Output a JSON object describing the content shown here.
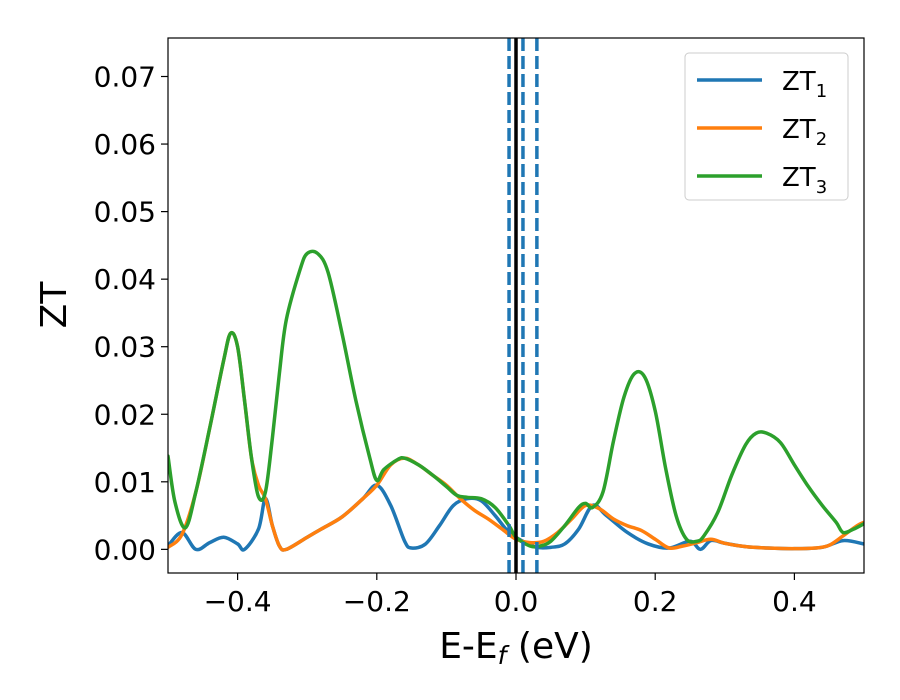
{
  "chart_data": {
    "type": "line",
    "xlabel": {
      "main": "E-E",
      "sub": "f",
      "unit": " (eV)"
    },
    "ylabel": "ZT",
    "xlim": [
      -0.5,
      0.5
    ],
    "ylim": [
      -0.0035,
      0.0757
    ],
    "x_ticks": [
      -0.4,
      -0.2,
      0.0,
      0.2,
      0.4
    ],
    "x_tick_labels": [
      "−0.4",
      "−0.2",
      "0.0",
      "0.2",
      "0.4"
    ],
    "y_ticks": [
      0.0,
      0.01,
      0.02,
      0.03,
      0.04,
      0.05,
      0.06,
      0.07
    ],
    "y_tick_labels": [
      "0.00",
      "0.01",
      "0.02",
      "0.03",
      "0.04",
      "0.05",
      "0.06",
      "0.07"
    ],
    "grid": false,
    "legend_position": "top-right",
    "series": [
      {
        "name": "ZT",
        "sub": "1",
        "color": "#1f77b4",
        "points": [
          [
            -0.5,
            0.0005
          ],
          [
            -0.48,
            0.0025
          ],
          [
            -0.46,
            0.0
          ],
          [
            -0.44,
            0.001
          ],
          [
            -0.42,
            0.0018
          ],
          [
            -0.4,
            0.0008
          ],
          [
            -0.39,
            0.0
          ],
          [
            -0.37,
            0.003
          ],
          [
            -0.36,
            0.0075
          ],
          [
            -0.35,
            0.0035
          ],
          [
            -0.34,
            0.0005
          ],
          [
            -0.33,
            0.0
          ],
          [
            -0.3,
            0.0018
          ],
          [
            -0.28,
            0.003
          ],
          [
            -0.25,
            0.0048
          ],
          [
            -0.22,
            0.0075
          ],
          [
            -0.2,
            0.0095
          ],
          [
            -0.18,
            0.0065
          ],
          [
            -0.16,
            0.0012
          ],
          [
            -0.15,
            0.0002
          ],
          [
            -0.13,
            0.0008
          ],
          [
            -0.11,
            0.0035
          ],
          [
            -0.09,
            0.0065
          ],
          [
            -0.07,
            0.0075
          ],
          [
            -0.05,
            0.0072
          ],
          [
            -0.03,
            0.005
          ],
          [
            -0.01,
            0.0025
          ],
          [
            0.01,
            0.0012
          ],
          [
            0.03,
            0.0003
          ],
          [
            0.05,
            0.0003
          ],
          [
            0.07,
            0.0008
          ],
          [
            0.09,
            0.003
          ],
          [
            0.11,
            0.0065
          ],
          [
            0.13,
            0.005
          ],
          [
            0.16,
            0.0025
          ],
          [
            0.19,
            0.0008
          ],
          [
            0.22,
            0.0002
          ],
          [
            0.25,
            0.0012
          ],
          [
            0.265,
            0.0
          ],
          [
            0.28,
            0.0013
          ],
          [
            0.3,
            0.0009
          ],
          [
            0.33,
            0.0004
          ],
          [
            0.36,
            0.0002
          ],
          [
            0.4,
            0.0001
          ],
          [
            0.44,
            0.0003
          ],
          [
            0.47,
            0.0013
          ],
          [
            0.5,
            0.0008
          ]
        ]
      },
      {
        "name": "ZT",
        "sub": "2",
        "color": "#ff7f0e",
        "points": [
          [
            -0.5,
            0.0003
          ],
          [
            -0.48,
            0.0022
          ],
          [
            -0.46,
            0.0085
          ],
          [
            -0.44,
            0.018
          ],
          [
            -0.42,
            0.028
          ],
          [
            -0.41,
            0.032
          ],
          [
            -0.4,
            0.03
          ],
          [
            -0.39,
            0.022
          ],
          [
            -0.38,
            0.0135
          ],
          [
            -0.37,
            0.0095
          ],
          [
            -0.36,
            0.0075
          ],
          [
            -0.35,
            0.0035
          ],
          [
            -0.34,
            0.0005
          ],
          [
            -0.33,
            0.0
          ],
          [
            -0.3,
            0.0018
          ],
          [
            -0.28,
            0.003
          ],
          [
            -0.25,
            0.0048
          ],
          [
            -0.22,
            0.0075
          ],
          [
            -0.2,
            0.0095
          ],
          [
            -0.18,
            0.0125
          ],
          [
            -0.16,
            0.0135
          ],
          [
            -0.14,
            0.0125
          ],
          [
            -0.12,
            0.011
          ],
          [
            -0.1,
            0.0095
          ],
          [
            -0.08,
            0.0075
          ],
          [
            -0.06,
            0.0058
          ],
          [
            -0.04,
            0.0045
          ],
          [
            -0.02,
            0.003
          ],
          [
            0.0,
            0.0015
          ],
          [
            0.02,
            0.001
          ],
          [
            0.04,
            0.0012
          ],
          [
            0.06,
            0.0025
          ],
          [
            0.08,
            0.0045
          ],
          [
            0.1,
            0.0065
          ],
          [
            0.12,
            0.006
          ],
          [
            0.14,
            0.0045
          ],
          [
            0.16,
            0.0035
          ],
          [
            0.18,
            0.0028
          ],
          [
            0.2,
            0.0015
          ],
          [
            0.22,
            0.0002
          ],
          [
            0.24,
            0.0005
          ],
          [
            0.26,
            0.001
          ],
          [
            0.28,
            0.0015
          ],
          [
            0.3,
            0.0009
          ],
          [
            0.33,
            0.0004
          ],
          [
            0.36,
            0.0002
          ],
          [
            0.4,
            0.0001
          ],
          [
            0.43,
            0.0002
          ],
          [
            0.45,
            0.0006
          ],
          [
            0.47,
            0.002
          ],
          [
            0.49,
            0.0035
          ],
          [
            0.5,
            0.004
          ]
        ]
      },
      {
        "name": "ZT",
        "sub": "3",
        "color": "#2ca02c",
        "points": [
          [
            -0.5,
            0.0138
          ],
          [
            -0.49,
            0.007
          ],
          [
            -0.475,
            0.0032
          ],
          [
            -0.46,
            0.0085
          ],
          [
            -0.44,
            0.018
          ],
          [
            -0.42,
            0.028
          ],
          [
            -0.41,
            0.032
          ],
          [
            -0.4,
            0.03
          ],
          [
            -0.39,
            0.022
          ],
          [
            -0.38,
            0.0135
          ],
          [
            -0.37,
            0.0078
          ],
          [
            -0.36,
            0.0085
          ],
          [
            -0.35,
            0.0165
          ],
          [
            -0.34,
            0.026
          ],
          [
            -0.33,
            0.034
          ],
          [
            -0.31,
            0.0415
          ],
          [
            -0.3,
            0.0438
          ],
          [
            -0.285,
            0.0438
          ],
          [
            -0.27,
            0.041
          ],
          [
            -0.25,
            0.032
          ],
          [
            -0.23,
            0.022
          ],
          [
            -0.21,
            0.0135
          ],
          [
            -0.2,
            0.0102
          ],
          [
            -0.19,
            0.0118
          ],
          [
            -0.17,
            0.0133
          ],
          [
            -0.16,
            0.0135
          ],
          [
            -0.14,
            0.0125
          ],
          [
            -0.12,
            0.011
          ],
          [
            -0.1,
            0.0093
          ],
          [
            -0.085,
            0.008
          ],
          [
            -0.07,
            0.0077
          ],
          [
            -0.05,
            0.0075
          ],
          [
            -0.03,
            0.0062
          ],
          [
            -0.01,
            0.0035
          ],
          [
            0.0,
            0.0018
          ],
          [
            0.02,
            0.0005
          ],
          [
            0.035,
            0.0005
          ],
          [
            0.05,
            0.0012
          ],
          [
            0.07,
            0.0035
          ],
          [
            0.09,
            0.0062
          ],
          [
            0.1,
            0.0068
          ],
          [
            0.11,
            0.0062
          ],
          [
            0.125,
            0.0085
          ],
          [
            0.14,
            0.016
          ],
          [
            0.155,
            0.0225
          ],
          [
            0.17,
            0.026
          ],
          [
            0.185,
            0.0255
          ],
          [
            0.2,
            0.0205
          ],
          [
            0.215,
            0.012
          ],
          [
            0.23,
            0.005
          ],
          [
            0.245,
            0.0015
          ],
          [
            0.26,
            0.0012
          ],
          [
            0.27,
            0.002
          ],
          [
            0.29,
            0.0055
          ],
          [
            0.31,
            0.011
          ],
          [
            0.33,
            0.0155
          ],
          [
            0.345,
            0.0172
          ],
          [
            0.36,
            0.0172
          ],
          [
            0.38,
            0.0158
          ],
          [
            0.4,
            0.0125
          ],
          [
            0.42,
            0.0093
          ],
          [
            0.44,
            0.0065
          ],
          [
            0.46,
            0.004
          ],
          [
            0.47,
            0.0025
          ],
          [
            0.485,
            0.003
          ],
          [
            0.5,
            0.0038
          ]
        ]
      }
    ],
    "vertical_lines": [
      {
        "x": 0.0,
        "style": "solid",
        "color": "#000000"
      },
      {
        "x": -0.01,
        "style": "dashed",
        "color": "#1f77b4"
      },
      {
        "x": 0.01,
        "style": "dashed",
        "color": "#1f77b4"
      },
      {
        "x": 0.03,
        "style": "dashed",
        "color": "#1f77b4"
      }
    ]
  }
}
